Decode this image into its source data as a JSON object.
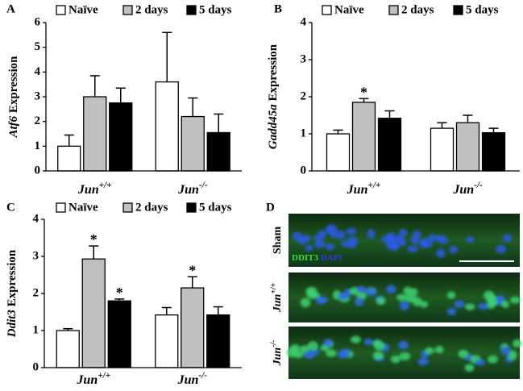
{
  "chart_data": [
    {
      "type": "bar",
      "panel": "A",
      "ylabel": "Atf6 Expression",
      "categories": [
        "Jun+/+",
        "Jun-/-"
      ],
      "series": [
        {
          "name": "Naïve",
          "color": "#ffffff",
          "values": [
            1.0,
            3.6
          ],
          "errors": [
            0.45,
            2.0
          ]
        },
        {
          "name": "2 days",
          "color": "#c0c0c0",
          "values": [
            3.0,
            2.2
          ],
          "errors": [
            0.85,
            0.75
          ]
        },
        {
          "name": "5 days",
          "color": "#000000",
          "values": [
            2.75,
            1.55
          ],
          "errors": [
            0.6,
            0.75
          ]
        }
      ],
      "ylim": [
        0,
        6
      ],
      "yticks": [
        0,
        1,
        2,
        3,
        4,
        5,
        6
      ]
    },
    {
      "type": "bar",
      "panel": "B",
      "ylabel": "Gadd45a Expression",
      "categories": [
        "Jun+/+",
        "Jun-/-"
      ],
      "series": [
        {
          "name": "Naïve",
          "color": "#ffffff",
          "values": [
            1.0,
            1.15
          ],
          "errors": [
            0.1,
            0.15
          ]
        },
        {
          "name": "2 days",
          "color": "#c0c0c0",
          "values": [
            1.85,
            1.3
          ],
          "errors": [
            0.1,
            0.2
          ],
          "asterisks": [
            "*",
            null
          ]
        },
        {
          "name": "5 days",
          "color": "#000000",
          "values": [
            1.42,
            1.03
          ],
          "errors": [
            0.2,
            0.12
          ]
        }
      ],
      "ylim": [
        0,
        4
      ],
      "yticks": [
        0,
        1,
        2,
        3,
        4
      ]
    },
    {
      "type": "bar",
      "panel": "C",
      "ylabel": "Ddit3 Expression",
      "categories": [
        "Jun+/+",
        "Jun-/-"
      ],
      "series": [
        {
          "name": "Naïve",
          "color": "#ffffff",
          "values": [
            1.0,
            1.42
          ],
          "errors": [
            0.05,
            0.2
          ]
        },
        {
          "name": "2 days",
          "color": "#c0c0c0",
          "values": [
            2.93,
            2.15
          ],
          "errors": [
            0.35,
            0.3
          ],
          "asterisks": [
            "*",
            "*"
          ]
        },
        {
          "name": "5 days",
          "color": "#000000",
          "values": [
            1.8,
            1.42
          ],
          "errors": [
            0.05,
            0.22
          ],
          "asterisks": [
            "*",
            null
          ]
        }
      ],
      "ylim": [
        0,
        4
      ],
      "yticks": [
        0,
        1,
        2,
        3,
        4
      ]
    }
  ],
  "panel_d": {
    "label": "D",
    "rows": [
      "Sham",
      "Jun+/+",
      "Jun-/-"
    ],
    "stains": [
      "DDIT3",
      "DAPI"
    ]
  }
}
